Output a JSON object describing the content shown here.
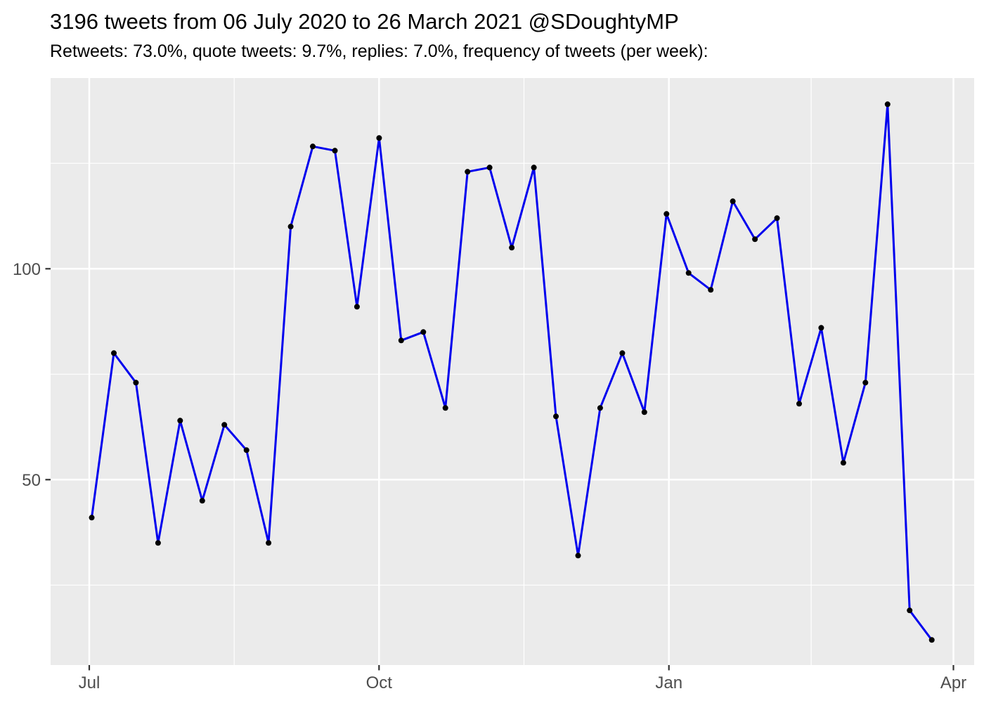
{
  "header": {
    "title": "3196 tweets from 06 July 2020 to 26 March 2021 @SDoughtyMP",
    "subtitle": "Retweets: 73.0%, quote tweets: 9.7%, replies: 7.0%, frequency of tweets (per week):"
  },
  "chart_data": {
    "type": "line",
    "title": "3196 tweets from 06 July 2020 to 26 March 2021 @SDoughtyMP",
    "subtitle": "Retweets: 73.0%, quote tweets: 9.7%, replies: 7.0%, frequency of tweets (per week):",
    "x_unit": "week index (weekly bins from 06 July 2020 to 26 March 2021)",
    "x": [
      0,
      1,
      2,
      3,
      4,
      5,
      6,
      7,
      8,
      9,
      10,
      11,
      12,
      13,
      14,
      15,
      16,
      17,
      18,
      19,
      20,
      21,
      22,
      23,
      24,
      25,
      26,
      27,
      28,
      29,
      30,
      31,
      32,
      33,
      34,
      35,
      36,
      37,
      38
    ],
    "values": [
      41,
      80,
      73,
      35,
      64,
      45,
      63,
      57,
      35,
      110,
      129,
      128,
      91,
      131,
      83,
      85,
      67,
      123,
      124,
      105,
      124,
      65,
      32,
      67,
      80,
      66,
      113,
      99,
      95,
      116,
      107,
      112,
      68,
      86,
      54,
      73,
      139,
      19,
      12
    ],
    "total_tweets": 3196,
    "xlabel": "",
    "ylabel": "",
    "x_axis": {
      "tick_labels": [
        "Jul",
        "Oct",
        "Jan",
        "Apr"
      ]
    },
    "y_axis": {
      "tick_labels": [
        "50",
        "100"
      ],
      "tick_values": [
        50,
        100
      ],
      "minor_tick_values": [
        25,
        75,
        125
      ]
    },
    "ylim": [
      6,
      145
    ],
    "grid": "on",
    "legend": "none",
    "colors": {
      "line": "#0000EE",
      "point": "#000000",
      "panel_background": "#EBEBEB",
      "gridline": "#FFFFFF",
      "tick_mark": "#333333",
      "tick_label": "#4D4D4D",
      "title_text": "#000000"
    }
  }
}
